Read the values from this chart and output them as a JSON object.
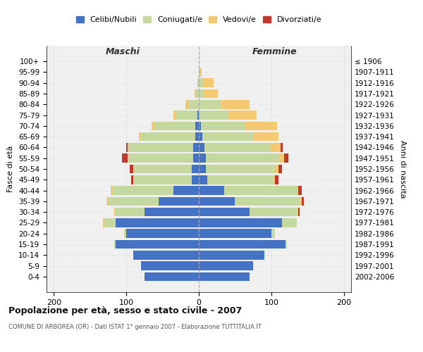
{
  "age_groups": [
    "0-4",
    "5-9",
    "10-14",
    "15-19",
    "20-24",
    "25-29",
    "30-34",
    "35-39",
    "40-44",
    "45-49",
    "50-54",
    "55-59",
    "60-64",
    "65-69",
    "70-74",
    "75-79",
    "80-84",
    "85-89",
    "90-94",
    "95-99",
    "100+"
  ],
  "birth_years": [
    "2002-2006",
    "1997-2001",
    "1992-1996",
    "1987-1991",
    "1982-1986",
    "1977-1981",
    "1972-1976",
    "1967-1971",
    "1962-1966",
    "1957-1961",
    "1952-1956",
    "1947-1951",
    "1942-1946",
    "1937-1941",
    "1932-1936",
    "1927-1931",
    "1922-1926",
    "1917-1921",
    "1912-1916",
    "1907-1911",
    "≤ 1906"
  ],
  "males": {
    "celibi": [
      75,
      80,
      90,
      115,
      100,
      115,
      75,
      55,
      35,
      10,
      10,
      8,
      8,
      5,
      5,
      2,
      0,
      0,
      0,
      0,
      0
    ],
    "coniugati": [
      0,
      0,
      0,
      2,
      3,
      15,
      40,
      70,
      85,
      80,
      80,
      90,
      90,
      75,
      55,
      30,
      15,
      4,
      2,
      0,
      0
    ],
    "vedovi": [
      0,
      0,
      0,
      0,
      0,
      2,
      2,
      2,
      2,
      0,
      0,
      0,
      0,
      3,
      5,
      3,
      3,
      2,
      0,
      0,
      0
    ],
    "divorziati": [
      0,
      0,
      0,
      0,
      0,
      0,
      0,
      0,
      0,
      3,
      5,
      8,
      2,
      0,
      0,
      0,
      0,
      0,
      0,
      0,
      0
    ]
  },
  "females": {
    "nubili": [
      70,
      75,
      90,
      120,
      100,
      115,
      70,
      50,
      35,
      12,
      10,
      10,
      8,
      5,
      3,
      0,
      0,
      0,
      0,
      0,
      0
    ],
    "coniugate": [
      0,
      0,
      0,
      2,
      5,
      20,
      65,
      90,
      100,
      90,
      95,
      100,
      90,
      70,
      60,
      40,
      30,
      8,
      5,
      2,
      0
    ],
    "vedove": [
      0,
      0,
      0,
      0,
      0,
      0,
      2,
      2,
      2,
      3,
      5,
      8,
      15,
      35,
      45,
      40,
      40,
      18,
      15,
      2,
      0
    ],
    "divorziate": [
      0,
      0,
      0,
      0,
      0,
      0,
      2,
      3,
      5,
      5,
      5,
      5,
      3,
      0,
      0,
      0,
      0,
      0,
      0,
      0,
      0
    ]
  },
  "colors": {
    "celibi_nubili": "#4472c4",
    "coniugati": "#c5d8a0",
    "vedovi": "#f5c872",
    "divorziati": "#c0392b"
  },
  "xlim": [
    -210,
    210
  ],
  "xticks": [
    -200,
    -100,
    0,
    100,
    200
  ],
  "xticklabels": [
    "200",
    "100",
    "0",
    "100",
    "200"
  ],
  "title": "Popolazione per età, sesso e stato civile - 2007",
  "subtitle": "COMUNE DI ARBOREA (OR) - Dati ISTAT 1° gennaio 2007 - Elaborazione TUTTITALIA.IT",
  "ylabel_left": "Fasce di età",
  "ylabel_right": "Anni di nascita",
  "maschi_label": "Maschi",
  "femmine_label": "Femmine",
  "legend_labels": [
    "Celibi/Nubili",
    "Coniugati/e",
    "Vedovi/e",
    "Divorziati/e"
  ],
  "background_color": "#ffffff",
  "plot_bg_color": "#f0f0f0"
}
